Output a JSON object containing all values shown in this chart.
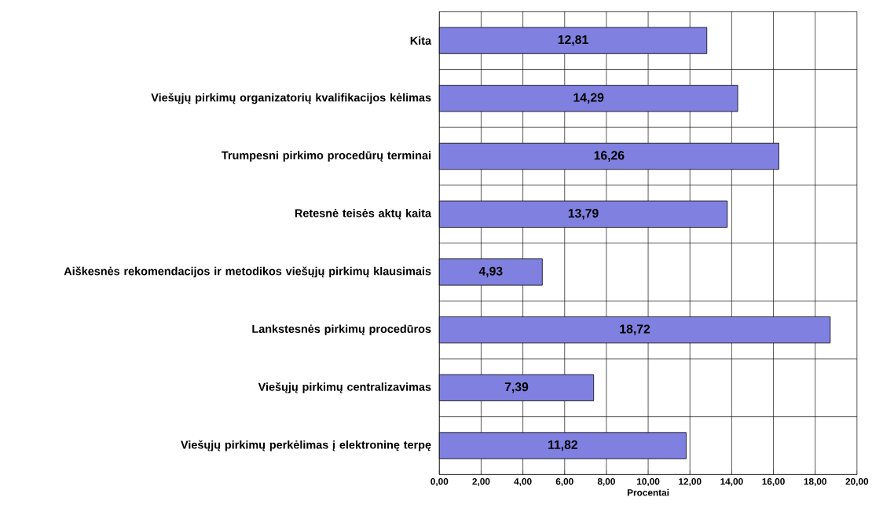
{
  "chart_data": {
    "type": "bar",
    "orientation": "horizontal",
    "xlabel": "Procentai",
    "categories": [
      "Kita",
      "Viešųjų pirkimų organizatorių kvalifikacijos kėlimas",
      "Trumpesni pirkimo procedūrų terminai",
      "Retesnė teisės aktų kaita",
      "Aiškesnės rekomendacijos ir metodikos viešųjų pirkimų klausimais",
      "Lankstesnės pirkimų procedūros",
      "Viešųjų pirkimų centralizavimas",
      "Viešųjų pirkimų perkėlimas į elektroninę terpę"
    ],
    "values": [
      12.81,
      14.29,
      16.26,
      13.79,
      4.93,
      18.72,
      7.39,
      11.82
    ],
    "value_labels": [
      "12,81",
      "14,29",
      "16,26",
      "13,79",
      "4,93",
      "18,72",
      "7,39",
      "11,82"
    ],
    "color": "#8080e0",
    "grid": true,
    "xlim": [
      0,
      20
    ],
    "xticks": [
      {
        "value": 0,
        "label": "0,00"
      },
      {
        "value": 2,
        "label": "2,00"
      },
      {
        "value": 4,
        "label": "4,00"
      },
      {
        "value": 6,
        "label": "6,00"
      },
      {
        "value": 8,
        "label": "8,00"
      },
      {
        "value": 10,
        "label": "10,00"
      },
      {
        "value": 12,
        "label": "12,00"
      },
      {
        "value": 14,
        "label": "14,00"
      },
      {
        "value": 16,
        "label": "16,00"
      },
      {
        "value": 18,
        "label": "18,00"
      },
      {
        "value": 20,
        "label": "20,00"
      }
    ]
  }
}
